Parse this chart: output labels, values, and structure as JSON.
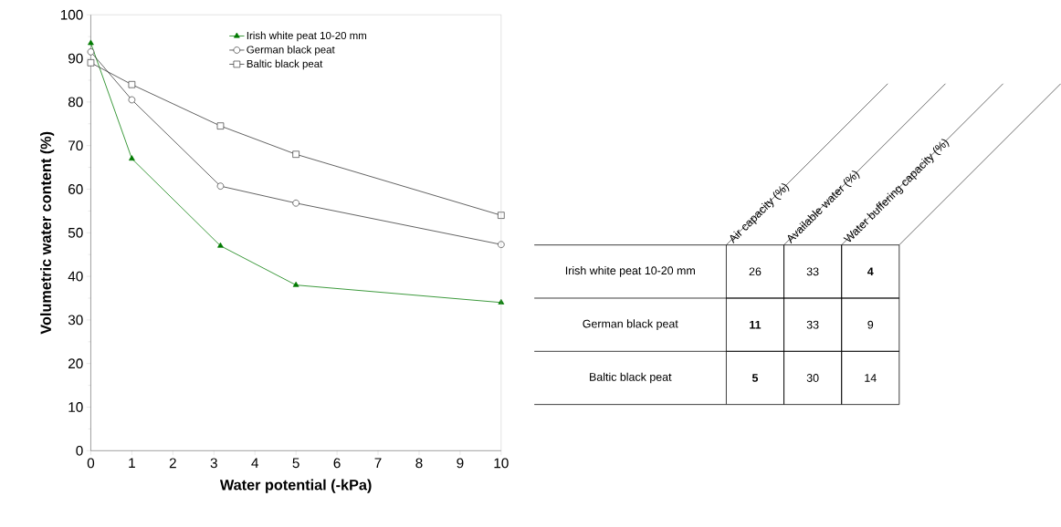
{
  "chart_data": [
    {
      "type": "line",
      "xlabel": "Water potential (-kPa)",
      "ylabel": "Volumetric water content (%)",
      "xlim": [
        0,
        10
      ],
      "ylim": [
        0,
        100
      ],
      "xticks": [
        0,
        1,
        2,
        3,
        4,
        5,
        6,
        7,
        8,
        9,
        10
      ],
      "yticks": [
        0,
        10,
        20,
        30,
        40,
        50,
        60,
        70,
        80,
        90,
        100
      ],
      "x": [
        0,
        1,
        3.16,
        5,
        10
      ],
      "legend": "top",
      "grid": false,
      "line_style": "solid",
      "series": [
        {
          "name": "Irish white peat 10-20 mm",
          "color": "#007a00",
          "marker": "triangle",
          "values": [
            93.5,
            67,
            47,
            38,
            34
          ]
        },
        {
          "name": "German black peat",
          "color": "#333333",
          "marker": "circle",
          "values": [
            91.5,
            80.5,
            60.7,
            56.8,
            47.3
          ]
        },
        {
          "name": "Baltic black peat",
          "color": "#333333",
          "marker": "square",
          "values": [
            89,
            84,
            74.5,
            68,
            54
          ]
        }
      ]
    },
    {
      "type": "other",
      "categories": [
        "Air capacity (%)",
        "Available water (%)",
        "Water buffering capacity (%)"
      ],
      "y_categories": [
        "Irish white peat 10-20 mm",
        "German black peat",
        "Baltic black peat"
      ],
      "cell_labels": [
        [
          "26",
          "33",
          "**4**"
        ],
        [
          "**11**",
          "33",
          "9"
        ],
        [
          "**5**",
          "30",
          "14"
        ]
      ]
    }
  ]
}
